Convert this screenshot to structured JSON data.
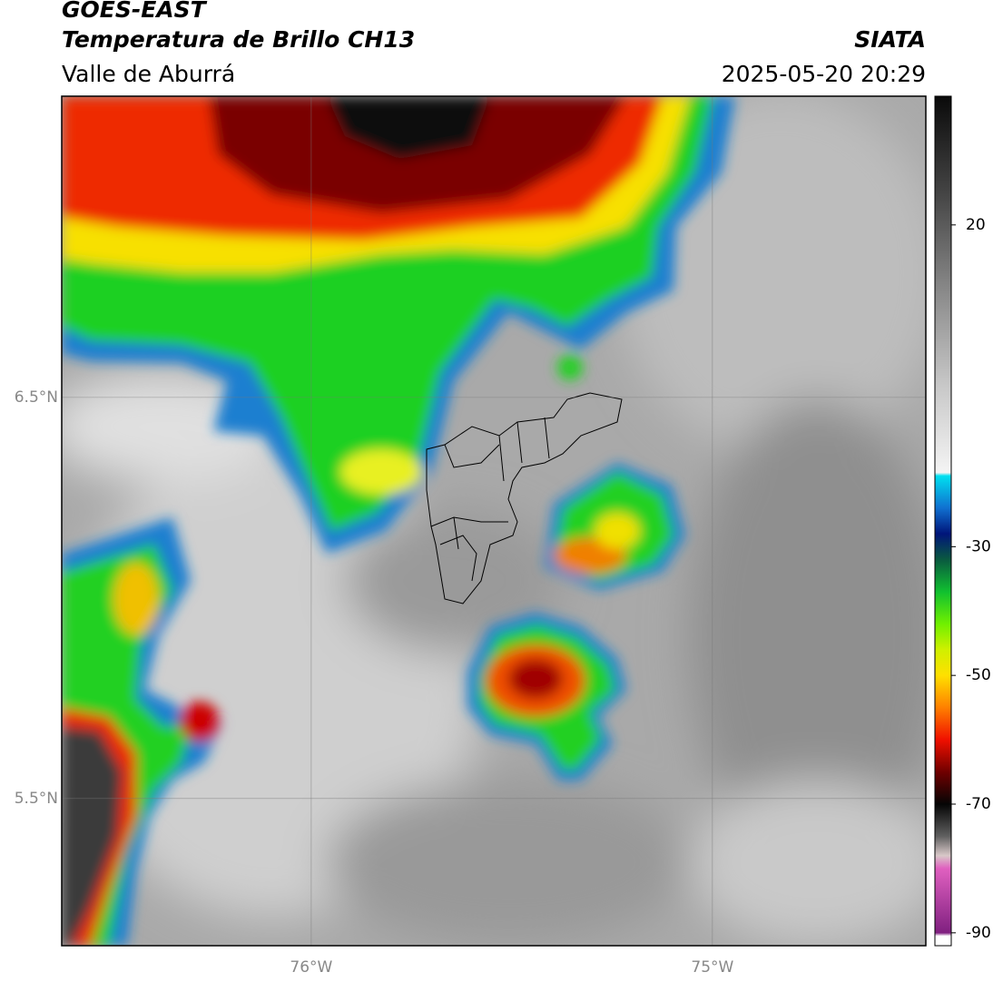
{
  "header": {
    "title": "GOES-EAST",
    "subtitle": "Temperatura de Brillo CH13",
    "region": "Valle de Aburrá",
    "source": "SIATA",
    "datetime": "2025-05-20 20:29"
  },
  "map": {
    "xlim": [
      -76.622,
      -74.468
    ],
    "ylim": [
      5.133,
      7.251
    ],
    "xticks": [
      {
        "value": -76,
        "label": "76°W"
      },
      {
        "value": -75,
        "label": "75°W"
      }
    ],
    "yticks": [
      {
        "value": 6.5,
        "label": "6.5°N"
      },
      {
        "value": 5.5,
        "label": "5.5°N"
      }
    ],
    "grid": true
  },
  "colorbar": {
    "lim": [
      -92,
      40
    ],
    "ticks": [
      20,
      -30,
      -50,
      -70,
      -90
    ]
  }
}
